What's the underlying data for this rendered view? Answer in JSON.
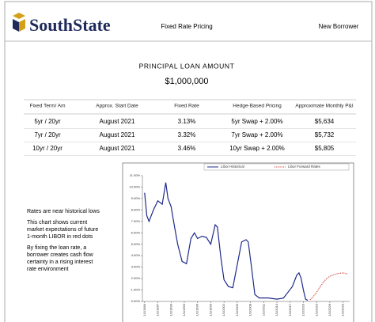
{
  "header": {
    "logo": "SouthState",
    "title": "Fixed Rate Pricing",
    "borrower": "New Borrower"
  },
  "loan": {
    "label": "PRINCIPAL LOAN AMOUNT",
    "amount": "$1,000,000"
  },
  "table": {
    "columns": [
      "Fixed Term/ Am",
      "Approx. Start Date",
      "Fixed Rate",
      "Hedge-Based Pricing",
      "Approximate Monthly P&I"
    ],
    "rows": [
      [
        "5yr /  20yr",
        "August 2021",
        "3.13%",
        "5yr Swap + 2.00%",
        "$5,634"
      ],
      [
        "7yr /  20yr",
        "August 2021",
        "3.32%",
        "7yr Swap + 2.00%",
        "$5,732"
      ],
      [
        "10yr /  20yr",
        "August 2021",
        "3.46%",
        "10yr Swap + 2.00%",
        "$5,805"
      ]
    ]
  },
  "notes": [
    [
      "Rates are near historical  lows"
    ],
    [
      "This chart  shows current",
      "market  expectations  of future",
      "1-month  LIBOR in red dots"
    ],
    [
      "By fixing  the loan rate, a",
      "borrower  creates  cash flow",
      "certainty  in  a rising interest",
      "rate environment"
    ]
  ],
  "chart_data": {
    "type": "line",
    "series": [
      {
        "name": "Libor Historical",
        "color": "#1f2a8a",
        "style": "solid",
        "x": [
          1984,
          1984.5,
          1985,
          1986,
          1987,
          1988,
          1988.8,
          1989.3,
          1990,
          1990.8,
          1991.5,
          1992.5,
          1993.5,
          1994.5,
          1995.3,
          1996,
          1997,
          1998,
          1999,
          2000,
          2000.5,
          2001.3,
          2002,
          2003,
          2004,
          2005,
          2006,
          2007,
          2007.5,
          2008.3,
          2009,
          2010,
          2012,
          2014,
          2015.5,
          2016.5,
          2017.5,
          2018.5,
          2019,
          2019.5,
          2020,
          2020.5,
          2021
        ],
        "values": [
          9.5,
          7.5,
          7.0,
          8.0,
          8.8,
          8.5,
          10.4,
          9.0,
          8.3,
          6.5,
          5.0,
          3.5,
          3.3,
          5.5,
          6.0,
          5.5,
          5.7,
          5.6,
          5.0,
          6.7,
          6.5,
          3.8,
          1.9,
          1.3,
          1.2,
          3.2,
          5.2,
          5.4,
          5.2,
          2.8,
          0.6,
          0.3,
          0.3,
          0.2,
          0.3,
          0.8,
          1.3,
          2.3,
          2.5,
          2.0,
          1.0,
          0.2,
          0.1
        ]
      },
      {
        "name": "Libor Forward Rates",
        "color": "#cc2222",
        "style": "dotted",
        "x": [
          2021.5,
          2022,
          2023,
          2024,
          2025,
          2026,
          2027,
          2028,
          2029,
          2030
        ],
        "values": [
          0.15,
          0.3,
          0.8,
          1.4,
          1.9,
          2.2,
          2.35,
          2.45,
          2.5,
          2.4
        ]
      }
    ],
    "xlim": [
      1983.5,
      2030.5
    ],
    "xticks": [
      {
        "value": 1984,
        "label": "1/1/1984"
      },
      {
        "value": 1987,
        "label": "1/1/1987"
      },
      {
        "value": 1990,
        "label": "1/1/1990"
      },
      {
        "value": 1993,
        "label": "1/1/1993"
      },
      {
        "value": 1996,
        "label": "1/1/1996"
      },
      {
        "value": 1999,
        "label": "1/1/1999"
      },
      {
        "value": 2002,
        "label": "1/1/2002"
      },
      {
        "value": 2005,
        "label": "1/1/2005"
      },
      {
        "value": 2008,
        "label": "1/1/2008"
      },
      {
        "value": 2011,
        "label": "1/1/2011"
      },
      {
        "value": 2014,
        "label": "1/1/2014"
      },
      {
        "value": 2017,
        "label": "1/1/2017"
      },
      {
        "value": 2020,
        "label": "1/1/2020"
      },
      {
        "value": 2023,
        "label": "1/1/2023"
      },
      {
        "value": 2026,
        "label": "1/1/2026"
      },
      {
        "value": 2029,
        "label": "1/1/2029"
      }
    ],
    "ylim": [
      0,
      11
    ],
    "yticks": [
      {
        "value": 0,
        "label": "0.00%"
      },
      {
        "value": 1,
        "label": "1.00%"
      },
      {
        "value": 2,
        "label": "2.00%"
      },
      {
        "value": 3,
        "label": "3.00%"
      },
      {
        "value": 4,
        "label": "4.00%"
      },
      {
        "value": 5,
        "label": "5.00%"
      },
      {
        "value": 6,
        "label": "6.00%"
      },
      {
        "value": 7,
        "label": "7.00%"
      },
      {
        "value": 8,
        "label": "8.00%"
      },
      {
        "value": 9,
        "label": "9.00%"
      },
      {
        "value": 10,
        "label": "10.00%"
      },
      {
        "value": 11,
        "label": "11.00%"
      }
    ],
    "legend": "top"
  }
}
